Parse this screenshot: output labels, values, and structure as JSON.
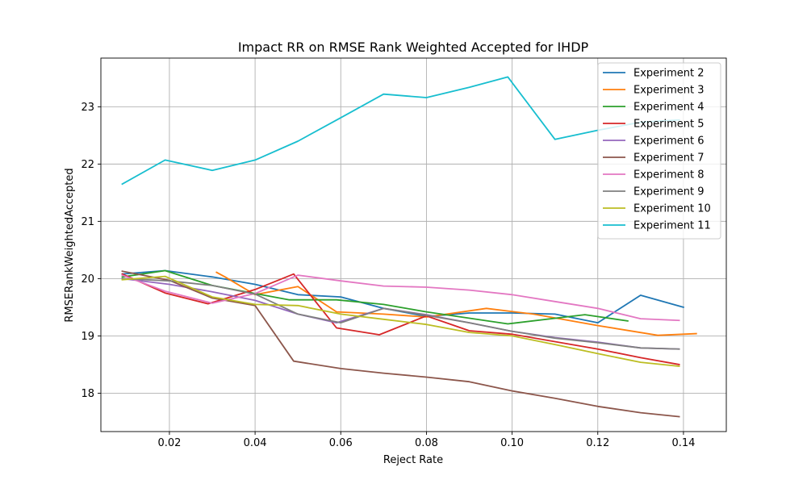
{
  "chart_data": {
    "type": "line",
    "title": "Impact RR on RMSE Rank Weighted Accepted for IHDP",
    "xlabel": "Reject Rate",
    "ylabel": "RMSERankWeightedAccepted",
    "xlim": [
      0.004,
      0.15
    ],
    "ylim": [
      17.33,
      23.85
    ],
    "xticks": [
      0.02,
      0.04,
      0.06,
      0.08,
      0.1,
      0.12,
      0.14
    ],
    "xtick_labels": [
      "0.02",
      "0.04",
      "0.06",
      "0.08",
      "0.10",
      "0.12",
      "0.14"
    ],
    "yticks": [
      18,
      19,
      20,
      21,
      22,
      23
    ],
    "ytick_labels": [
      "18",
      "19",
      "20",
      "21",
      "22",
      "23"
    ],
    "grid": true,
    "legend_position": "top-right",
    "series": [
      {
        "name": "Experiment 2",
        "color": "#1f77b4",
        "x": [
          0.009,
          0.019,
          0.03,
          0.04,
          0.05,
          0.06,
          0.07,
          0.08,
          0.09,
          0.1,
          0.11,
          0.12,
          0.13,
          0.14
        ],
        "y": [
          20.08,
          20.14,
          20.03,
          19.9,
          19.72,
          19.68,
          19.48,
          19.34,
          19.4,
          19.4,
          19.38,
          19.23,
          19.71,
          19.5
        ]
      },
      {
        "name": "Experiment 3",
        "color": "#ff7f0e",
        "x": [
          0.031,
          0.033,
          0.04,
          0.05,
          0.059,
          0.07,
          0.08,
          0.094,
          0.105,
          0.12,
          0.134,
          0.143
        ],
        "y": [
          20.11,
          20.03,
          19.72,
          19.86,
          19.42,
          19.38,
          19.33,
          19.48,
          19.38,
          19.18,
          19.01,
          19.04
        ]
      },
      {
        "name": "Experiment 4",
        "color": "#2ca02c",
        "x": [
          0.009,
          0.019,
          0.03,
          0.04,
          0.048,
          0.059,
          0.07,
          0.08,
          0.099,
          0.117,
          0.127
        ],
        "y": [
          20.03,
          20.14,
          19.88,
          19.74,
          19.63,
          19.63,
          19.55,
          19.42,
          19.21,
          19.37,
          19.26
        ]
      },
      {
        "name": "Experiment 5",
        "color": "#d62728",
        "x": [
          0.009,
          0.019,
          0.029,
          0.04,
          0.049,
          0.059,
          0.069,
          0.08,
          0.09,
          0.1,
          0.12,
          0.13,
          0.139
        ],
        "y": [
          20.08,
          19.75,
          19.56,
          19.81,
          20.08,
          19.14,
          19.02,
          19.35,
          19.09,
          19.03,
          18.77,
          18.62,
          18.5
        ]
      },
      {
        "name": "Experiment 6",
        "color": "#9467bd",
        "x": [
          0.009,
          0.02,
          0.03,
          0.04,
          0.05,
          0.059,
          0.07,
          0.08,
          0.09,
          0.1,
          0.11,
          0.12,
          0.13,
          0.139
        ],
        "y": [
          20.0,
          19.9,
          19.77,
          19.62,
          19.38,
          19.23,
          19.48,
          19.37,
          19.23,
          19.08,
          18.97,
          18.89,
          18.79,
          18.77
        ]
      },
      {
        "name": "Experiment 7",
        "color": "#8c564b",
        "x": [
          0.009,
          0.02,
          0.03,
          0.04,
          0.049,
          0.06,
          0.07,
          0.08,
          0.09,
          0.1,
          0.11,
          0.12,
          0.13,
          0.139
        ],
        "y": [
          20.13,
          19.97,
          19.66,
          19.53,
          18.56,
          18.43,
          18.35,
          18.28,
          18.2,
          18.04,
          17.91,
          17.77,
          17.66,
          17.59
        ]
      },
      {
        "name": "Experiment 8",
        "color": "#e377c2",
        "x": [
          0.009,
          0.019,
          0.03,
          0.04,
          0.05,
          0.06,
          0.07,
          0.08,
          0.09,
          0.1,
          0.11,
          0.12,
          0.13,
          0.139
        ],
        "y": [
          20.06,
          19.78,
          19.57,
          19.74,
          20.06,
          19.96,
          19.87,
          19.85,
          19.8,
          19.72,
          19.6,
          19.48,
          19.3,
          19.27
        ]
      },
      {
        "name": "Experiment 9",
        "color": "#7f7f7f",
        "x": [
          0.009,
          0.02,
          0.03,
          0.04,
          0.05,
          0.06,
          0.07,
          0.08,
          0.09,
          0.1,
          0.11,
          0.12,
          0.13,
          0.139
        ],
        "y": [
          20.0,
          19.96,
          19.88,
          19.73,
          19.38,
          19.23,
          19.48,
          19.36,
          19.23,
          19.08,
          18.96,
          18.88,
          18.79,
          18.77
        ]
      },
      {
        "name": "Experiment 10",
        "color": "#bcbd22",
        "x": [
          0.009,
          0.019,
          0.03,
          0.04,
          0.05,
          0.06,
          0.07,
          0.08,
          0.09,
          0.1,
          0.11,
          0.12,
          0.13,
          0.139
        ],
        "y": [
          19.98,
          20.04,
          19.68,
          19.55,
          19.53,
          19.38,
          19.29,
          19.2,
          19.06,
          19.0,
          18.85,
          18.69,
          18.54,
          18.47
        ]
      },
      {
        "name": "Experiment 11",
        "color": "#17becf",
        "x": [
          0.009,
          0.019,
          0.03,
          0.04,
          0.05,
          0.06,
          0.07,
          0.08,
          0.09,
          0.099,
          0.11,
          0.12,
          0.13,
          0.139
        ],
        "y": [
          21.65,
          22.07,
          21.89,
          22.07,
          22.4,
          22.81,
          23.22,
          23.16,
          23.34,
          23.52,
          22.43,
          22.59,
          22.73,
          22.77
        ]
      }
    ]
  }
}
